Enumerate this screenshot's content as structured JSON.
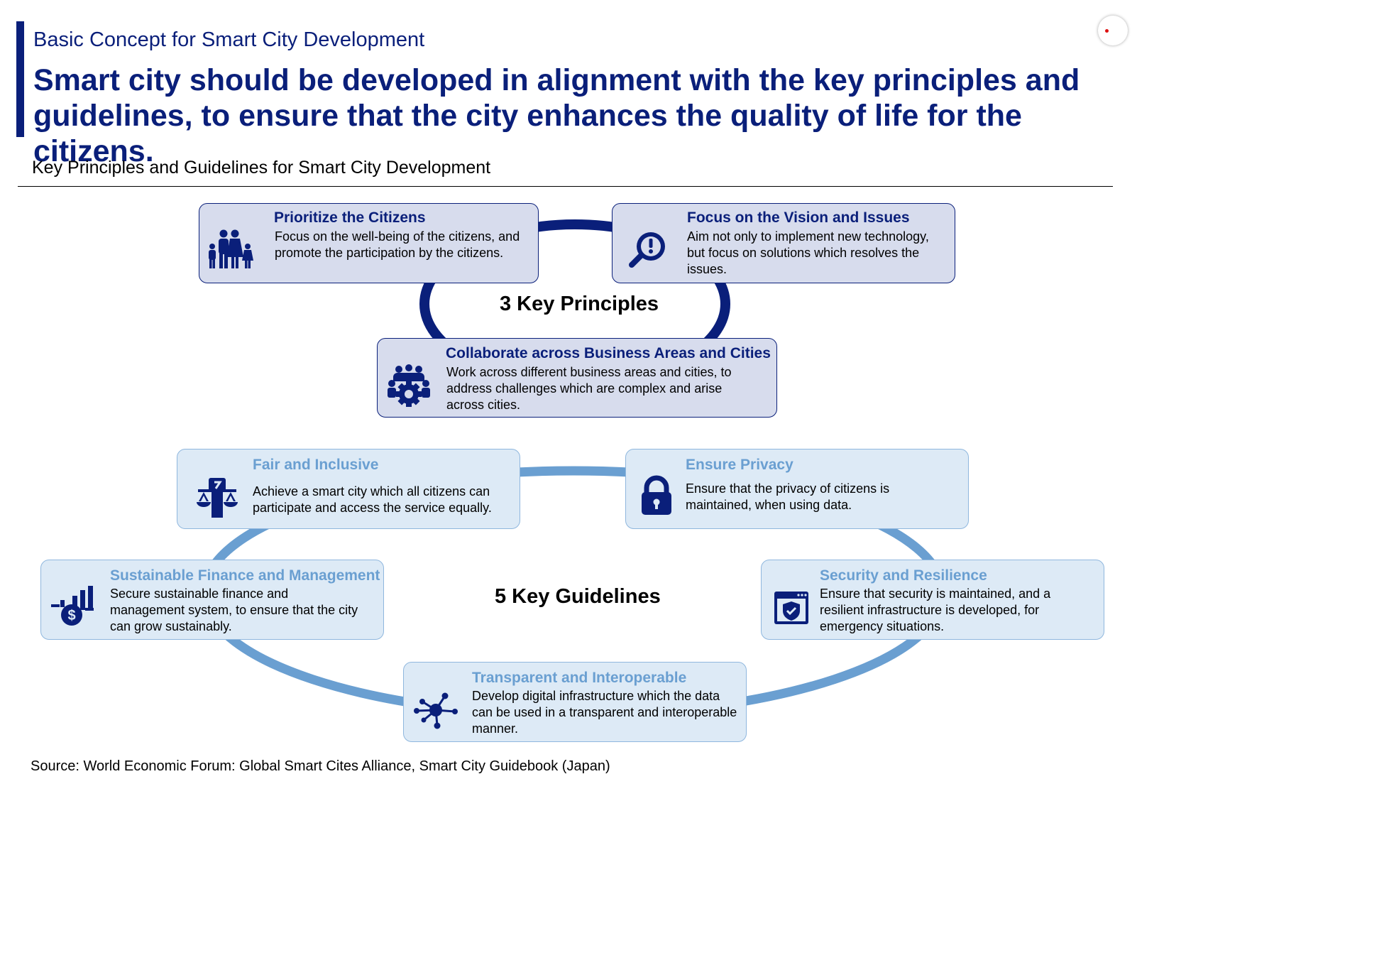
{
  "kicker": "Basic Concept for Smart City Development",
  "headline": "Smart city should be developed in alignment with the key principles and guidelines, to ensure that the city enhances the quality of life for the citizens.",
  "section_title": "Key Principles and Guidelines for Smart City Development",
  "principles": {
    "label": "3 Key Principles",
    "items": [
      {
        "title": "Prioritize the Citizens",
        "desc": "Focus on the well-being of the citizens, and promote the participation by the citizens.",
        "icon": "family-icon"
      },
      {
        "title": "Focus on the Vision and Issues",
        "desc": "Aim not only to implement new technology, but focus on solutions which resolves the issues.",
        "icon": "magnifier-exclamation-icon"
      },
      {
        "title": "Collaborate across Business Areas and Cities",
        "desc": "Work across different business areas and cities, to address challenges which are complex and arise across cities.",
        "icon": "team-gear-icon"
      }
    ]
  },
  "guidelines": {
    "label": "5 Key Guidelines",
    "items": [
      {
        "title": "Fair and Inclusive",
        "desc": "Achieve a smart city which all citizens can participate and access the service equally.",
        "icon": "scales-icon"
      },
      {
        "title": "Ensure Privacy",
        "desc": "Ensure that the privacy of citizens is maintained, when using data.",
        "icon": "padlock-icon"
      },
      {
        "title": "Sustainable Finance and Management",
        "desc": "Secure sustainable finance and management system, to ensure that the city can grow sustainably.",
        "icon": "finance-chart-icon"
      },
      {
        "title": "Security and Resilience",
        "desc": "Ensure that security is maintained, and a resilient infrastructure is developed, for emergency situations.",
        "icon": "shield-window-icon"
      },
      {
        "title": "Transparent and Interoperable",
        "desc": "Develop digital infrastructure which the data can be used in a transparent and interoperable manner.",
        "icon": "network-hub-icon"
      }
    ]
  },
  "source": "Source: World Economic Forum: Global Smart Cites Alliance, Smart City Guidebook (Japan)",
  "colors": {
    "navy": "#0a1f7a",
    "light_blue": "#6a9fd1",
    "dark_card": "#d7dced",
    "light_card": "#ddeaf6"
  }
}
